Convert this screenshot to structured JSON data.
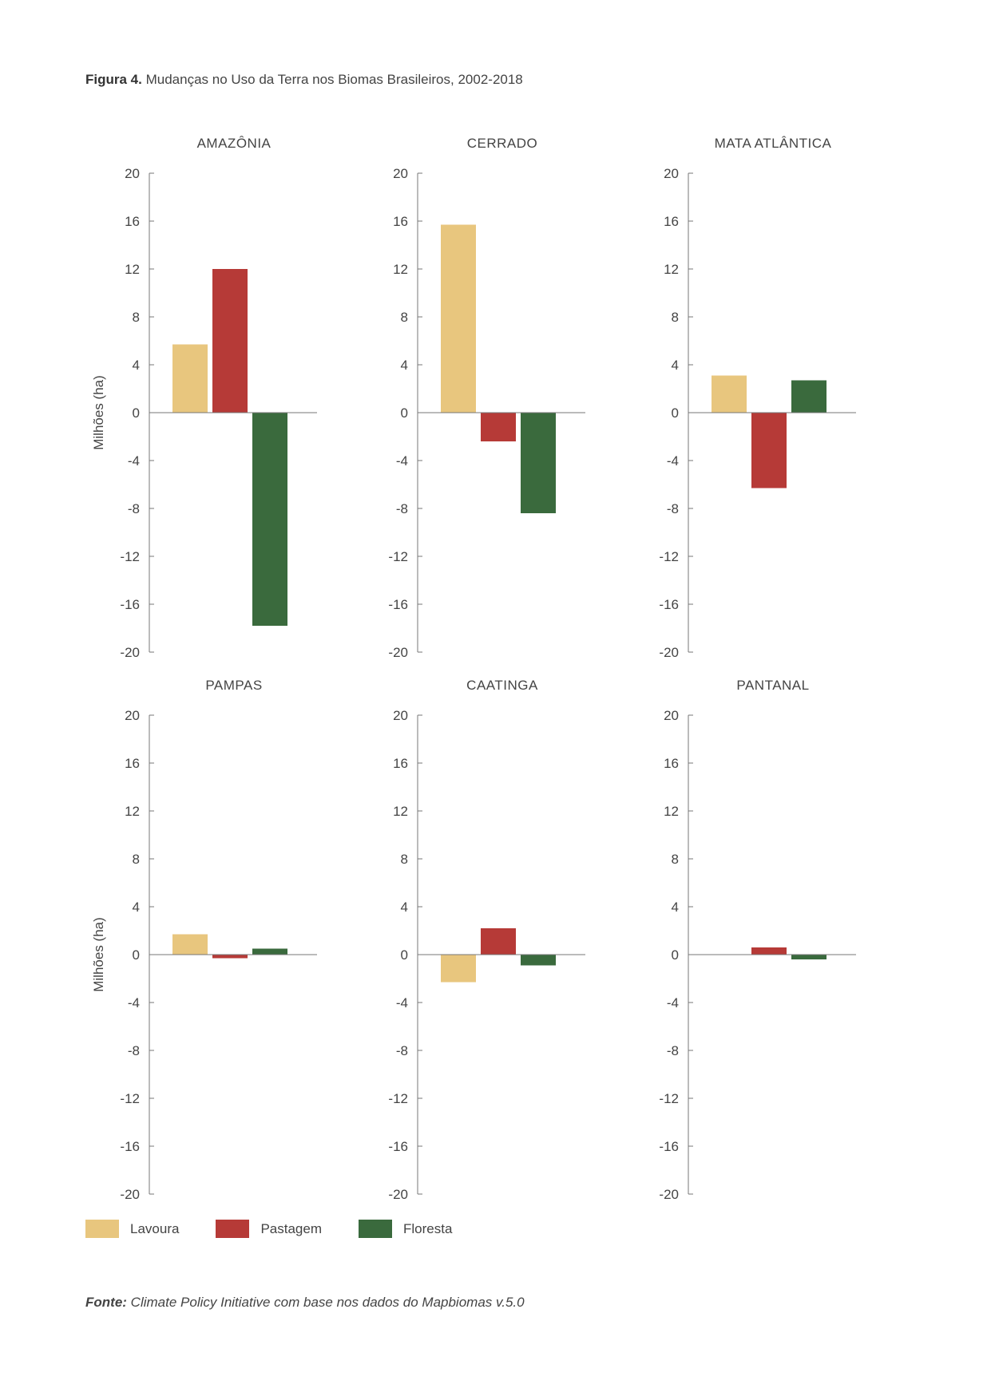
{
  "figure": {
    "label": "Figura 4.",
    "title": "Mudanças no Uso da Terra nos Biomas Brasileiros, 2002-2018"
  },
  "legend": [
    {
      "name": "Lavoura",
      "color": "#E8C67E"
    },
    {
      "name": "Pastagem",
      "color": "#B63A37"
    },
    {
      "name": "Floresta",
      "color": "#3A6A3D"
    }
  ],
  "source": {
    "label": "Fonte:",
    "text": "Climate Policy Initiative com base nos dados do Mapbiomas v.5.0"
  },
  "chart_data": [
    {
      "type": "bar",
      "title": "AMAZÔNIA",
      "ylabel": "Milhões (ha)",
      "categories": [
        "Lavoura",
        "Pastagem",
        "Floresta"
      ],
      "values": [
        5.7,
        12.0,
        -17.8
      ],
      "ylim": [
        -20,
        20
      ],
      "yticks": [
        20,
        16,
        12,
        8,
        4,
        0,
        -4,
        -8,
        -12,
        -16,
        -20
      ]
    },
    {
      "type": "bar",
      "title": "CERRADO",
      "ylabel": "",
      "categories": [
        "Lavoura",
        "Pastagem",
        "Floresta"
      ],
      "values": [
        15.7,
        -2.4,
        -8.4
      ],
      "ylim": [
        -20,
        20
      ],
      "yticks": [
        20,
        16,
        12,
        8,
        4,
        0,
        -4,
        -8,
        -12,
        -16,
        -20
      ]
    },
    {
      "type": "bar",
      "title": "MATA ATLÂNTICA",
      "ylabel": "",
      "categories": [
        "Lavoura",
        "Pastagem",
        "Floresta"
      ],
      "values": [
        3.1,
        -6.3,
        2.7
      ],
      "ylim": [
        -20,
        20
      ],
      "yticks": [
        20,
        16,
        12,
        8,
        4,
        0,
        -4,
        -8,
        -12,
        -16,
        -20
      ]
    },
    {
      "type": "bar",
      "title": "PAMPAS",
      "ylabel": "Milhões (ha)",
      "categories": [
        "Lavoura",
        "Pastagem",
        "Floresta"
      ],
      "values": [
        1.7,
        -0.3,
        0.5
      ],
      "ylim": [
        -20,
        20
      ],
      "yticks": [
        20,
        16,
        12,
        8,
        4,
        0,
        -4,
        -8,
        -12,
        -16,
        -20
      ]
    },
    {
      "type": "bar",
      "title": "CAATINGA",
      "ylabel": "",
      "categories": [
        "Lavoura",
        "Pastagem",
        "Floresta"
      ],
      "values": [
        -2.3,
        2.2,
        -0.9
      ],
      "ylim": [
        -20,
        20
      ],
      "yticks": [
        20,
        16,
        12,
        8,
        4,
        0,
        -4,
        -8,
        -12,
        -16,
        -20
      ]
    },
    {
      "type": "bar",
      "title": "PANTANAL",
      "ylabel": "",
      "categories": [
        "Lavoura",
        "Pastagem",
        "Floresta"
      ],
      "values": [
        0.0,
        0.6,
        -0.4
      ],
      "ylim": [
        -20,
        20
      ],
      "yticks": [
        20,
        16,
        12,
        8,
        4,
        0,
        -4,
        -8,
        -12,
        -16,
        -20
      ]
    }
  ]
}
